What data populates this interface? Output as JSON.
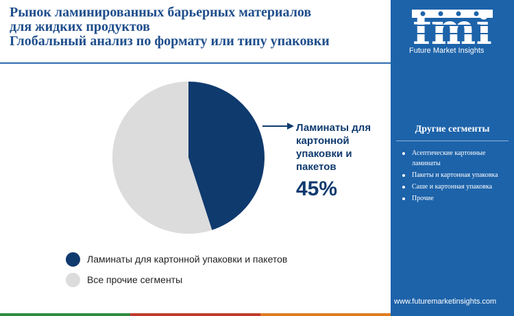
{
  "title": {
    "line1": "Рынок ламинированных барьерных материалов",
    "line2": "для жидких продуктов",
    "line3": "Глобальный анализ по формату или типу упаковки"
  },
  "brand": {
    "logo_text": "fmi",
    "tagline": "Future Market Insights",
    "url": "www.futuremarketinsights.com"
  },
  "sidebar": {
    "title": "Другие сегменты",
    "items": [
      "Асептические картонные ламинаты",
      "Пакеты и картонная упаковка",
      "Саше и картонная упаковка",
      "Прочие"
    ]
  },
  "colors": {
    "accent": "#0f3a6e",
    "other": "#dcdcdc",
    "sidebar": "#1d63aa"
  },
  "callout": {
    "label": "Ламинаты для картонной упаковки и пакетов",
    "value": "45%"
  },
  "chart_data": {
    "type": "pie",
    "title": "Глобальный анализ по формату или типу упаковки",
    "slices": [
      {
        "label": "Ламинаты для картонной упаковки и пакетов",
        "value": 45,
        "color": "#0f3a6e"
      },
      {
        "label": "Все прочие сегменты",
        "value": 55,
        "color": "#dcdcdc"
      }
    ],
    "legend_position": "bottom-left"
  }
}
